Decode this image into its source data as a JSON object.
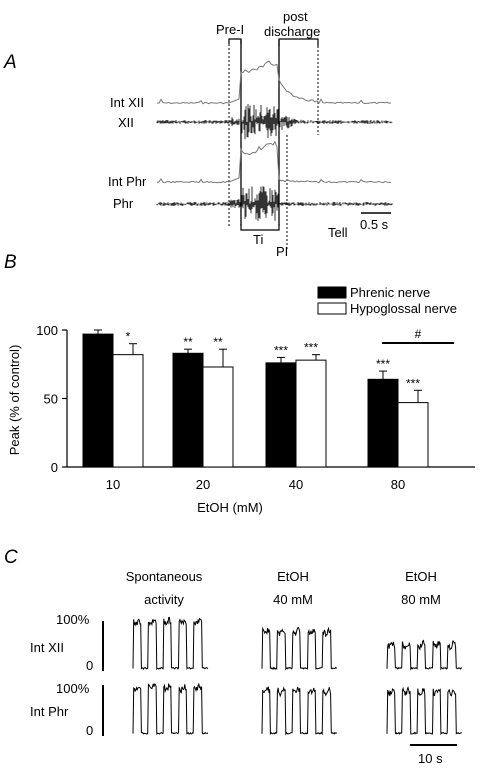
{
  "panel_a": {
    "letter": "A",
    "labels": {
      "pre_i": "Pre-I",
      "post_discharge_line1": "post",
      "post_discharge_line2": "discharge",
      "int_xii": "Int XII",
      "xii": "XII",
      "int_phr": "Int Phr",
      "phr": "Phr",
      "ti": "Ti",
      "pi": "PI",
      "tell": "Tell",
      "scale": "0.5 s"
    }
  },
  "panel_b": {
    "letter": "B"
  },
  "panel_c": {
    "letter": "C",
    "columns": [
      {
        "line1": "Spontaneous",
        "line2": "activity"
      },
      {
        "line1": "EtOH",
        "line2": "40 mM"
      },
      {
        "line1": "EtOH",
        "line2": "80 mM"
      }
    ],
    "rows": [
      {
        "name": "Int XII",
        "top": "100%",
        "bottom": "0"
      },
      {
        "name": "Int Phr",
        "top": "100%",
        "bottom": "0"
      }
    ],
    "scale": "10 s"
  },
  "chart_data": [
    {
      "type": "bar",
      "ylabel": "Peak (% of control)",
      "xlabel": "EtOH (mM)",
      "ylim": [
        0,
        100
      ],
      "yticks": [
        "0",
        "50",
        "100"
      ],
      "categories": [
        "10",
        "20",
        "40",
        "80"
      ],
      "legend_position": "top-right",
      "series": [
        {
          "name": "Phrenic nerve",
          "color": "#000000",
          "values": [
            97,
            83,
            76,
            64
          ],
          "errors": [
            3,
            3,
            4,
            6
          ],
          "marks": [
            "",
            "**",
            "***",
            "***"
          ]
        },
        {
          "name": "Hypoglossal nerve",
          "color": "#ffffff",
          "values": [
            82,
            73,
            78,
            47
          ],
          "errors": [
            8,
            13,
            4,
            9
          ],
          "marks": [
            "*",
            "**",
            "***",
            "***"
          ]
        }
      ],
      "annotations": [
        {
          "text": "#",
          "between_series_at": "80"
        }
      ],
      "grid": false
    }
  ]
}
